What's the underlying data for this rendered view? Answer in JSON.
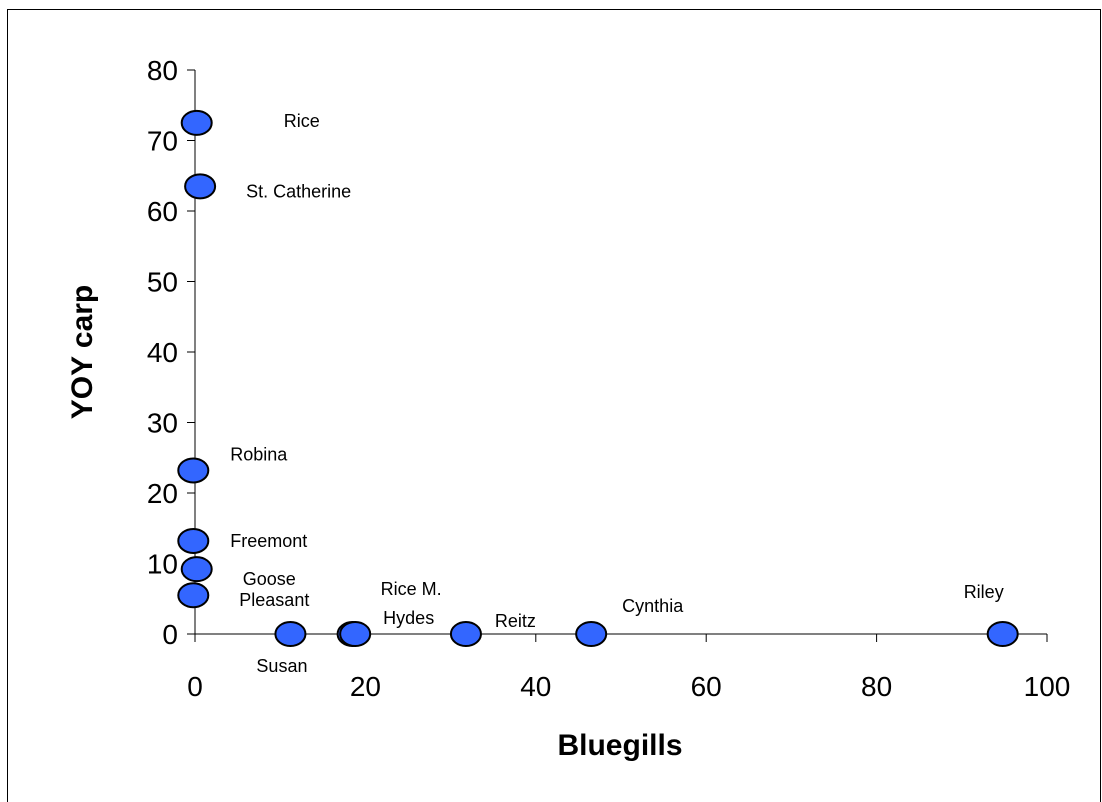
{
  "chart_data": {
    "type": "scatter",
    "xlabel": "Bluegills",
    "ylabel": "YOY carp",
    "xlim": [
      0,
      100
    ],
    "ylim": [
      0,
      80
    ],
    "x_ticks": [
      0,
      20,
      40,
      60,
      80,
      100
    ],
    "y_ticks": [
      0,
      10,
      20,
      30,
      40,
      50,
      60,
      70,
      80
    ],
    "grid": false,
    "legend": "none",
    "marker_color": "#3366FF",
    "points": [
      {
        "label": "Rice",
        "x": 0.2,
        "y": 72.5
      },
      {
        "label": "St. Catherine",
        "x": 0.6,
        "y": 63.5
      },
      {
        "label": "Robina",
        "x": -0.2,
        "y": 23.2
      },
      {
        "label": "Freemont",
        "x": -0.2,
        "y": 13.2
      },
      {
        "label": "Goose",
        "x": 0.2,
        "y": 9.2
      },
      {
        "label": "Pleasant",
        "x": -0.2,
        "y": 5.5
      },
      {
        "label": "Susan",
        "x": 11.2,
        "y": 0
      },
      {
        "label": "Rice M.",
        "x": 18.5,
        "y": 0
      },
      {
        "label": "Hydes",
        "x": 18.8,
        "y": 0
      },
      {
        "label": "Reitz",
        "x": 31.8,
        "y": 0
      },
      {
        "label": "Cynthia",
        "x": 46.5,
        "y": 0
      },
      {
        "label": "Riley",
        "x": 94.8,
        "y": 0
      }
    ]
  }
}
